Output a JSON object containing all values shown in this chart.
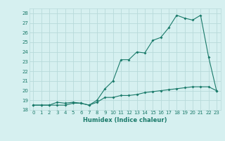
{
  "title": "",
  "xlabel": "Humidex (Indice chaleur)",
  "ylabel": "",
  "bg_color": "#d6f0f0",
  "grid_color": "#b8dada",
  "line_color": "#1a7a6a",
  "xlim": [
    -0.5,
    23.5
  ],
  "ylim": [
    18,
    28.5
  ],
  "yticks": [
    18,
    19,
    20,
    21,
    22,
    23,
    24,
    25,
    26,
    27,
    28
  ],
  "xticks": [
    0,
    1,
    2,
    3,
    4,
    5,
    6,
    7,
    8,
    9,
    10,
    11,
    12,
    13,
    14,
    15,
    16,
    17,
    18,
    19,
    20,
    21,
    22,
    23
  ],
  "series1_x": [
    0,
    1,
    2,
    3,
    4,
    5,
    6,
    7,
    8,
    9,
    10,
    11,
    12,
    13,
    14,
    15,
    16,
    17,
    18,
    19,
    20,
    21,
    22,
    23
  ],
  "series1_y": [
    18.5,
    18.5,
    18.5,
    18.5,
    18.5,
    18.7,
    18.7,
    18.5,
    18.8,
    19.3,
    19.3,
    19.5,
    19.5,
    19.6,
    19.8,
    19.9,
    20.0,
    20.1,
    20.2,
    20.3,
    20.4,
    20.4,
    20.4,
    20.0
  ],
  "series2_x": [
    0,
    1,
    2,
    3,
    4,
    5,
    6,
    7,
    8,
    9,
    10,
    11,
    12,
    13,
    14,
    15,
    16,
    17,
    18,
    19,
    20,
    21,
    22,
    23
  ],
  "series2_y": [
    18.5,
    18.5,
    18.5,
    18.8,
    18.7,
    18.8,
    18.7,
    18.5,
    19.0,
    20.2,
    21.0,
    23.2,
    23.2,
    24.0,
    23.9,
    25.2,
    25.5,
    26.5,
    27.8,
    27.5,
    27.3,
    27.8,
    23.5,
    20.0
  ],
  "tick_fontsize": 5.0,
  "xlabel_fontsize": 6.0
}
